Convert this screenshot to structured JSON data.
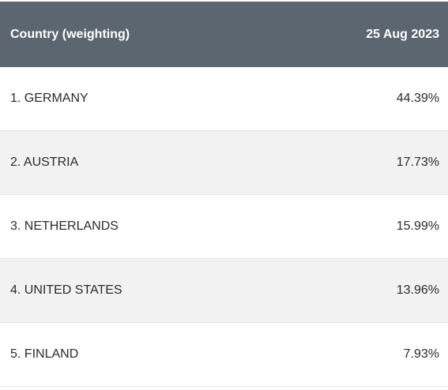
{
  "table": {
    "header": {
      "col_country": "Country (weighting)",
      "col_date": "25 Aug 2023"
    },
    "rows": [
      {
        "country": "1. GERMANY",
        "value": "44.39%"
      },
      {
        "country": "2. AUSTRIA",
        "value": "17.73%"
      },
      {
        "country": "3. NETHERLANDS",
        "value": "15.99%"
      },
      {
        "country": "4. UNITED STATES",
        "value": "13.96%"
      },
      {
        "country": "5. FINLAND",
        "value": "7.93%"
      }
    ]
  },
  "colors": {
    "header_bg": "#5b6670",
    "alt_row_bg": "#f2f2f2"
  }
}
